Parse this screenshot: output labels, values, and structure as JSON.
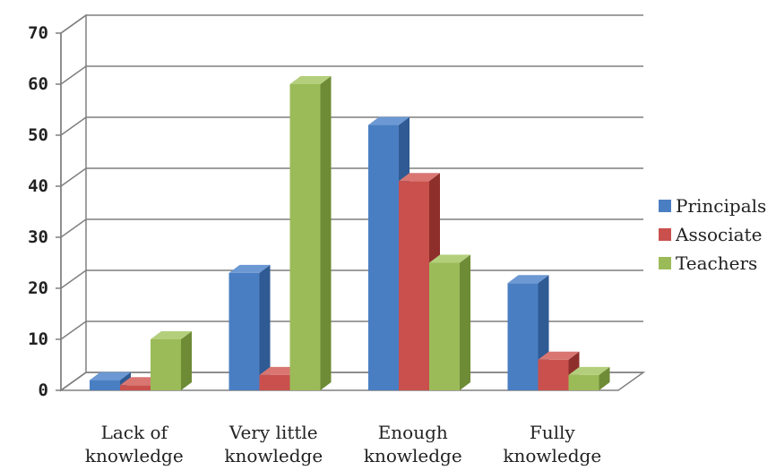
{
  "chart_data": {
    "type": "bar",
    "title": "",
    "xlabel": "",
    "ylabel": "",
    "categories": [
      [
        "Lack of",
        "knowledge"
      ],
      [
        "Very little",
        "knowledge"
      ],
      [
        "Enough",
        "knowledge"
      ],
      [
        "Fully",
        "knowledge"
      ]
    ],
    "series": [
      {
        "name": "Principals",
        "values": [
          2,
          23,
          52,
          21
        ],
        "color": "#4A7EC2",
        "side": "#2F5A93",
        "top": "#6C98D3"
      },
      {
        "name": "Associate",
        "values": [
          1,
          3,
          41,
          6
        ],
        "color": "#C9504C",
        "side": "#8E2F2C",
        "top": "#D97672"
      },
      {
        "name": "Teachers",
        "values": [
          10,
          60,
          25,
          3
        ],
        "color": "#9BBB59",
        "side": "#6E8B36",
        "top": "#B4CF7C"
      }
    ],
    "ylim": [
      0,
      70
    ],
    "yticks": [
      0,
      10,
      20,
      30,
      40,
      50,
      60,
      70
    ],
    "grid": true,
    "legend": "right",
    "style": "3d-clustered-column"
  }
}
